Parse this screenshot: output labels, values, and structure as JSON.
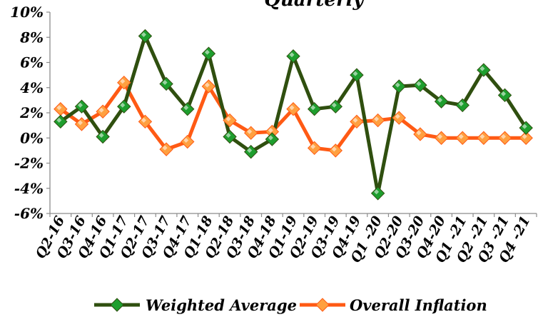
{
  "chart_data": {
    "type": "line",
    "title": "Quarterly",
    "categories": [
      "Q2-16",
      "Q3-16",
      "Q4-16",
      "Q1-17",
      "Q2-17",
      "Q3-17",
      "Q4-17",
      "Q1-18",
      "Q2-18",
      "Q3-18",
      "Q4-18",
      "Q1-19",
      "Q2-19",
      "Q3-19",
      "Q4-19",
      "Q1 -20",
      "Q2-20",
      "Q3-20",
      "Q4-20",
      "Q1 -21",
      "Q2 -21",
      "Q3 -21",
      "Q4 -21"
    ],
    "y_ticks": [
      "10%",
      "8%",
      "6%",
      "4%",
      "2%",
      "0%",
      "-2%",
      "-4%",
      "-6%"
    ],
    "ylim": [
      -6,
      10
    ],
    "grid": false,
    "legend_position": "bottom",
    "series": [
      {
        "name": "Weighted Average",
        "color": "#2f4f0f",
        "marker_color": "#1e9e2e",
        "values": [
          1.3,
          2.5,
          0.1,
          2.5,
          8.1,
          4.3,
          2.3,
          6.7,
          0.1,
          -1.1,
          -0.1,
          6.5,
          2.3,
          2.5,
          5.0,
          -4.4,
          4.1,
          4.2,
          2.9,
          2.6,
          5.4,
          3.4,
          0.8
        ]
      },
      {
        "name": "Overall Inflation",
        "color": "#ff5a14",
        "marker_color": "#ffa040",
        "values": [
          2.3,
          1.1,
          2.1,
          4.4,
          1.3,
          -0.9,
          -0.3,
          4.1,
          1.4,
          0.4,
          0.5,
          2.3,
          -0.8,
          -1.0,
          1.3,
          1.4,
          1.6,
          0.3,
          0.0,
          0.0,
          0.0,
          0.0,
          0.0
        ]
      }
    ]
  }
}
